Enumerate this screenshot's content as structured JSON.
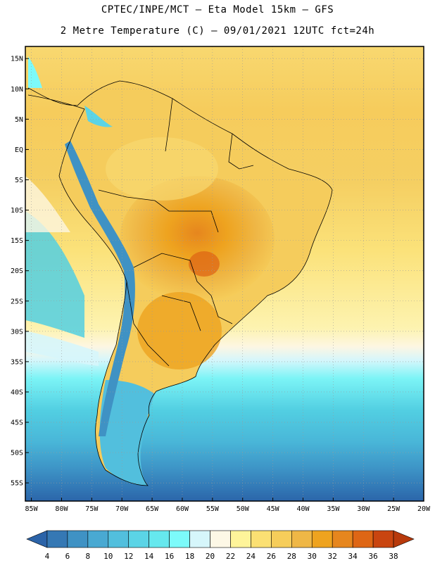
{
  "header": {
    "line1": "CPTEC/INPE/MCT –  Eta Model 15km – GFS",
    "line2": "2 Metre Temperature (C) – 09/01/2021 12UTC fct=24h"
  },
  "map": {
    "lat_ticks": [
      "15N",
      "10N",
      "5N",
      "EQ",
      "5S",
      "10S",
      "15S",
      "20S",
      "25S",
      "30S",
      "35S",
      "40S",
      "45S",
      "50S",
      "55S"
    ],
    "lon_ticks": [
      "85W",
      "80W",
      "75W",
      "70W",
      "65W",
      "60W",
      "55W",
      "50W",
      "45W",
      "40W",
      "35W",
      "30W",
      "25W",
      "20W"
    ]
  },
  "colorbar": {
    "labels": [
      "4",
      "6",
      "8",
      "10",
      "12",
      "14",
      "16",
      "18",
      "20",
      "22",
      "24",
      "26",
      "28",
      "30",
      "32",
      "34",
      "36",
      "38"
    ],
    "colors": [
      "#2b63a8",
      "#3578b4",
      "#3f92c4",
      "#49a9d2",
      "#52bfdd",
      "#5bd4e6",
      "#66e8ee",
      "#7cfafa",
      "#d6f6fb",
      "#fdf8e6",
      "#fef49a",
      "#fbe073",
      "#f6cd5a",
      "#efb746",
      "#eea31f",
      "#e6861e",
      "#de6615",
      "#c94510",
      "#b83a0c"
    ]
  }
}
